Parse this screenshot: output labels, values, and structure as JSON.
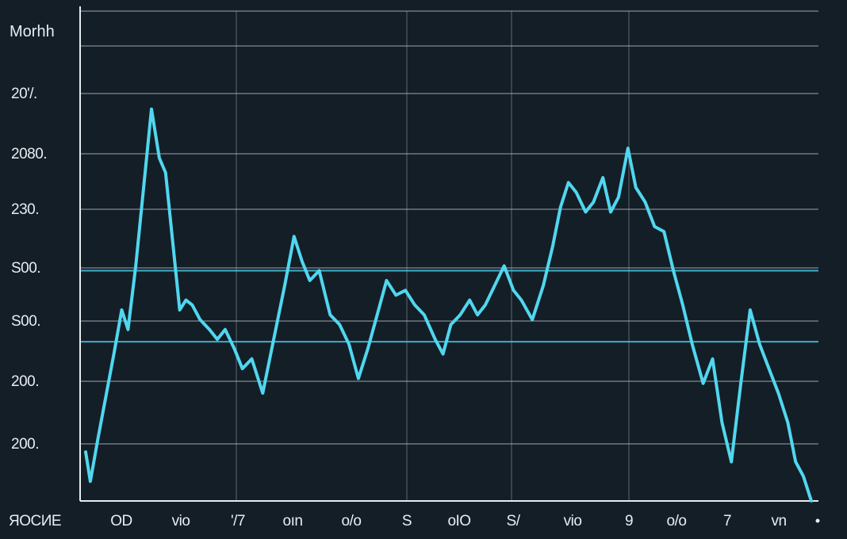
{
  "chart_data": {
    "type": "line",
    "title": "",
    "xlabel": "",
    "ylabel": "Morhh",
    "x_ticks": [
      "ЯОСИЕ",
      "OD",
      "vio",
      "'/7",
      "oın",
      "o/o",
      "S",
      "oIO",
      "S/",
      "vio",
      "9",
      "o/o",
      "7",
      "vn"
    ],
    "y_ticks": [
      "20'/.",
      "2080.",
      "230.",
      "S00.",
      "S00.",
      "200.",
      "200."
    ],
    "ylim": [
      0,
      100
    ],
    "grid": true,
    "reference_lines": [
      {
        "value": 47
      },
      {
        "value": 32.5
      }
    ],
    "series": [
      {
        "color": "#50d7ef",
        "points": [
          [
            0,
            10
          ],
          [
            0.3,
            4
          ],
          [
            0.8,
            13
          ],
          [
            1.8,
            30
          ],
          [
            2.3,
            39
          ],
          [
            2.7,
            35
          ],
          [
            3.2,
            48
          ],
          [
            4.2,
            80
          ],
          [
            4.7,
            70
          ],
          [
            5.1,
            67
          ],
          [
            6.0,
            39
          ],
          [
            6.4,
            41
          ],
          [
            6.8,
            40
          ],
          [
            7.3,
            37
          ],
          [
            7.9,
            35
          ],
          [
            8.4,
            33
          ],
          [
            8.9,
            35
          ],
          [
            9.5,
            31
          ],
          [
            10.0,
            27
          ],
          [
            10.6,
            29
          ],
          [
            11.3,
            22
          ],
          [
            12.0,
            33
          ],
          [
            12.7,
            44
          ],
          [
            13.3,
            54
          ],
          [
            13.8,
            49
          ],
          [
            14.3,
            45
          ],
          [
            14.9,
            47
          ],
          [
            15.6,
            38
          ],
          [
            16.2,
            36
          ],
          [
            16.8,
            32
          ],
          [
            17.4,
            25
          ],
          [
            18.0,
            31
          ],
          [
            18.6,
            38
          ],
          [
            19.2,
            45
          ],
          [
            19.8,
            42
          ],
          [
            20.4,
            43
          ],
          [
            21.0,
            40
          ],
          [
            21.6,
            38
          ],
          [
            22.3,
            33
          ],
          [
            22.8,
            30
          ],
          [
            23.3,
            36
          ],
          [
            23.9,
            38
          ],
          [
            24.5,
            41
          ],
          [
            25.0,
            38
          ],
          [
            25.5,
            40
          ],
          [
            26.1,
            44
          ],
          [
            26.7,
            48
          ],
          [
            27.3,
            43
          ],
          [
            27.8,
            41
          ],
          [
            28.5,
            37
          ],
          [
            29.2,
            44
          ],
          [
            29.8,
            52
          ],
          [
            30.3,
            60
          ],
          [
            30.8,
            65
          ],
          [
            31.3,
            63
          ],
          [
            31.9,
            59
          ],
          [
            32.4,
            61
          ],
          [
            33.0,
            66
          ],
          [
            33.5,
            59
          ],
          [
            34.0,
            62
          ],
          [
            34.6,
            72
          ],
          [
            35.1,
            64
          ],
          [
            35.7,
            61
          ],
          [
            36.3,
            56
          ],
          [
            36.9,
            55
          ],
          [
            37.5,
            47
          ],
          [
            38.1,
            40
          ],
          [
            38.7,
            32
          ],
          [
            39.4,
            24
          ],
          [
            40.0,
            29
          ],
          [
            40.6,
            16
          ],
          [
            41.2,
            8
          ],
          [
            41.8,
            24
          ],
          [
            42.4,
            39
          ],
          [
            43.0,
            32
          ],
          [
            43.6,
            27
          ],
          [
            44.2,
            22
          ],
          [
            44.8,
            16
          ],
          [
            45.3,
            8
          ],
          [
            45.8,
            5
          ],
          [
            46.3,
            0
          ]
        ]
      }
    ]
  }
}
